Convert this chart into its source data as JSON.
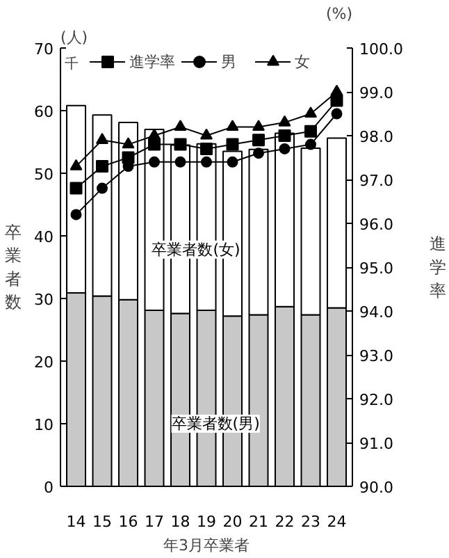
{
  "chart_data": {
    "type": "bar",
    "stacked": true,
    "categories": [
      "14",
      "15",
      "16",
      "17",
      "18",
      "19",
      "20",
      "21",
      "22",
      "23",
      "24"
    ],
    "series": [
      {
        "name": "卒業者数(男)",
        "color": "#c8c8c8",
        "values": [
          30.9,
          30.4,
          29.8,
          28.1,
          27.6,
          28.1,
          27.2,
          27.4,
          28.7,
          27.4,
          28.5
        ]
      },
      {
        "name": "卒業者数(女)",
        "color": "#ffffff",
        "values": [
          29.9,
          28.9,
          28.3,
          28.9,
          26.9,
          26.6,
          26.3,
          26.4,
          27.7,
          26.6,
          27.1
        ]
      },
      {
        "name": "進学率",
        "type": "line",
        "axis": "y2",
        "marker": "square",
        "color": "#000000",
        "values": [
          96.8,
          97.3,
          97.5,
          97.8,
          97.8,
          97.7,
          97.8,
          97.9,
          98.0,
          98.1,
          98.8
        ]
      },
      {
        "name": "男",
        "type": "line",
        "axis": "y2",
        "marker": "circle",
        "color": "#000000",
        "values": [
          96.2,
          96.8,
          97.3,
          97.4,
          97.4,
          97.4,
          97.4,
          97.6,
          97.7,
          97.8,
          98.5
        ]
      },
      {
        "name": "女",
        "type": "line",
        "axis": "y2",
        "marker": "triangle",
        "color": "#000000",
        "values": [
          97.3,
          97.9,
          97.8,
          98.0,
          98.2,
          98.0,
          98.2,
          98.2,
          98.3,
          98.5,
          99.0
        ]
      }
    ],
    "ylim": [
      0,
      70
    ],
    "yticks": [
      0,
      10,
      20,
      30,
      40,
      50,
      60,
      70
    ],
    "y2lim": [
      90,
      100
    ],
    "y2ticks": [
      {
        "value": 90,
        "label": "90.0"
      },
      {
        "value": 91,
        "label": "91.0"
      },
      {
        "value": 92,
        "label": "92.0"
      },
      {
        "value": 93,
        "label": "93.0"
      },
      {
        "value": 94,
        "label": "94.0"
      },
      {
        "value": 95,
        "label": "95.0"
      },
      {
        "value": 96,
        "label": "96.0"
      },
      {
        "value": 97,
        "label": "97.0"
      },
      {
        "value": 98,
        "label": "98.0"
      },
      {
        "value": 99,
        "label": "99.0"
      },
      {
        "value": 100,
        "label": "100.0"
      }
    ],
    "ylabel": "卒業者数",
    "y2label": "進学率",
    "xlabel": "年3月卒業者",
    "annotations": [
      "(人)",
      "(%)",
      "千"
    ],
    "legend": "top",
    "grid": false,
    "line_style": "solid"
  }
}
